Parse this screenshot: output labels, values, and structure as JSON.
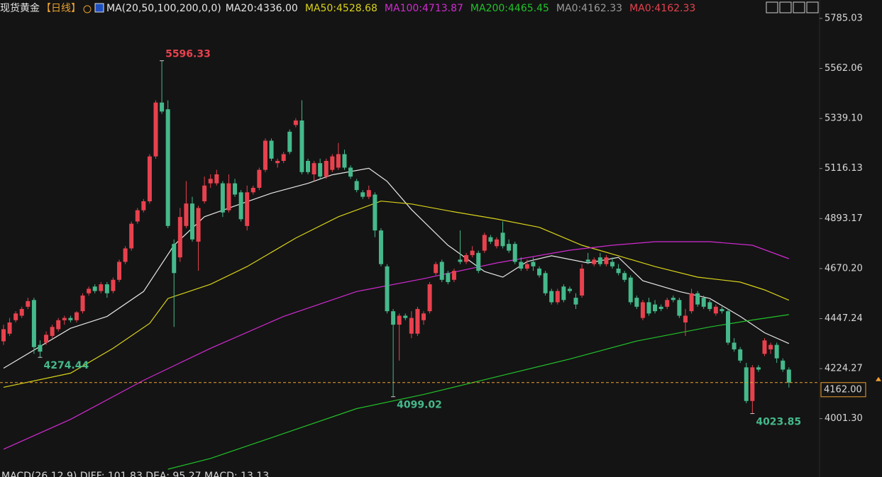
{
  "chart_data": {
    "type": "candlestick",
    "title": "现货黄金",
    "period": "【日线】",
    "indicator": "MA(20,50,100,200,0,0)",
    "footer": "MACD(26,12,9) DIFF: 101.83 DEA: 95.27 MACD: 13.13",
    "up_color": "#e8414e",
    "down_color": "#45b98b",
    "ylim": [
      3776,
      5867
    ],
    "yticks": [
      5785.03,
      5562.06,
      {
        "value": 5339.1,
        "label": "5339.10"
      },
      5116.13,
      4893.17,
      {
        "value": 4670.2,
        "label": "4670.20"
      },
      4447.24,
      4224.27,
      {
        "value": 4001.3,
        "label": "4001.30"
      }
    ],
    "current_price": {
      "value": 4162,
      "label": "4162.00",
      "color": "#f0a030"
    },
    "candles": [
      [
        4346,
        4420,
        4330,
        4400
      ],
      [
        4380,
        4450,
        4370,
        4430
      ],
      [
        4440,
        4480,
        4430,
        4470
      ],
      [
        4460,
        4500,
        4450,
        4490
      ],
      [
        4500,
        4540,
        4490,
        4525
      ],
      [
        4530,
        4540,
        4290,
        4320
      ],
      [
        4330,
        4350,
        4274.44,
        4300
      ],
      [
        4340,
        4390,
        4330,
        4375
      ],
      [
        4370,
        4420,
        4360,
        4410
      ],
      [
        4400,
        4450,
        4390,
        4440
      ],
      [
        4440,
        4460,
        4420,
        4450
      ],
      [
        4450,
        4460,
        4430,
        4440
      ],
      [
        4440,
        4480,
        4430,
        4475
      ],
      [
        4480,
        4560,
        4470,
        4550
      ],
      [
        4560,
        4590,
        4550,
        4580
      ],
      [
        4590,
        4600,
        4560,
        4570
      ],
      [
        4570,
        4610,
        4560,
        4600
      ],
      [
        4600,
        4610,
        4540,
        4560
      ],
      [
        4570,
        4630,
        4560,
        4620
      ],
      [
        4620,
        4710,
        4610,
        4700
      ],
      [
        4700,
        4770,
        4690,
        4760
      ],
      [
        4760,
        4880,
        4750,
        4870
      ],
      [
        4880,
        4940,
        4870,
        4930
      ],
      [
        4930,
        4980,
        4920,
        4970
      ],
      [
        4970,
        5180,
        4960,
        5170
      ],
      [
        5170,
        5420,
        5160,
        5410
      ],
      [
        5410,
        5596.33,
        5360,
        5370
      ],
      [
        5380,
        5420,
        4850,
        4860
      ],
      [
        4780,
        4800,
        4410,
        4650
      ],
      [
        4720,
        4940,
        4700,
        4900
      ],
      [
        4860,
        5060,
        4850,
        4960
      ],
      [
        4960,
        4990,
        4790,
        4800
      ],
      [
        4790,
        4950,
        4660,
        4940
      ],
      [
        4970,
        5080,
        4960,
        5040
      ],
      [
        5050,
        5090,
        5030,
        5070
      ],
      [
        5050,
        5110,
        5040,
        5090
      ],
      [
        5050,
        5060,
        4900,
        4920
      ],
      [
        4930,
        5090,
        4920,
        5050
      ],
      [
        5050,
        5070,
        4990,
        5000
      ],
      [
        5010,
        5020,
        4880,
        4890
      ],
      [
        4860,
        5040,
        4840,
        5010
      ],
      [
        5010,
        5040,
        5000,
        5030
      ],
      [
        5030,
        5120,
        5020,
        5110
      ],
      [
        5110,
        5250,
        5100,
        5240
      ],
      [
        5240,
        5250,
        5150,
        5160
      ],
      [
        5140,
        5160,
        5120,
        5150
      ],
      [
        5150,
        5190,
        5140,
        5180
      ],
      [
        5280,
        5290,
        5180,
        5190
      ],
      [
        5310,
        5340,
        5300,
        5330
      ],
      [
        5330,
        5420,
        5090,
        5100
      ],
      [
        5150,
        5160,
        5090,
        5100
      ],
      [
        5090,
        5150,
        5060,
        5140
      ],
      [
        5140,
        5160,
        5070,
        5080
      ],
      [
        5080,
        5160,
        5070,
        5150
      ],
      [
        5110,
        5180,
        5100,
        5170
      ],
      [
        5120,
        5230,
        5110,
        5180
      ],
      [
        5180,
        5200,
        5110,
        5120
      ],
      [
        5120,
        5130,
        5070,
        5080
      ],
      [
        5060,
        5070,
        5010,
        5020
      ],
      [
        5010,
        5020,
        4980,
        4990
      ],
      [
        4990,
        5040,
        4980,
        5020
      ],
      [
        5000,
        5010,
        4810,
        4840
      ],
      [
        4840,
        4850,
        4680,
        4690
      ],
      [
        4680,
        4690,
        4470,
        4480
      ],
      [
        4480,
        4490,
        4099.02,
        4420
      ],
      [
        4420,
        4470,
        4260,
        4460
      ],
      [
        4460,
        4470,
        4440,
        4450
      ],
      [
        4380,
        4480,
        4360,
        4450
      ],
      [
        4380,
        4500,
        4370,
        4490
      ],
      [
        4440,
        4480,
        4420,
        4470
      ],
      [
        4480,
        4610,
        4470,
        4600
      ],
      [
        4650,
        4700,
        4640,
        4690
      ],
      [
        4700,
        4710,
        4610,
        4620
      ],
      [
        4650,
        4660,
        4600,
        4610
      ],
      [
        4620,
        4670,
        4610,
        4660
      ],
      [
        4710,
        4840,
        4690,
        4700
      ],
      [
        4700,
        4740,
        4690,
        4730
      ],
      [
        4730,
        4770,
        4720,
        4750
      ],
      [
        4740,
        4750,
        4650,
        4660
      ],
      [
        4750,
        4830,
        4740,
        4820
      ],
      [
        4810,
        4820,
        4780,
        4790
      ],
      [
        4770,
        4810,
        4760,
        4800
      ],
      [
        4830,
        4880,
        4760,
        4770
      ],
      [
        4780,
        4800,
        4740,
        4750
      ],
      [
        4780,
        4790,
        4690,
        4700
      ],
      [
        4700,
        4720,
        4660,
        4670
      ],
      [
        4670,
        4710,
        4660,
        4690
      ],
      [
        4700,
        4720,
        4660,
        4680
      ],
      [
        4670,
        4680,
        4630,
        4640
      ],
      [
        4650,
        4660,
        4550,
        4560
      ],
      [
        4570,
        4580,
        4510,
        4520
      ],
      [
        4520,
        4580,
        4510,
        4570
      ],
      [
        4590,
        4600,
        4520,
        4530
      ],
      [
        4580,
        4590,
        4560,
        4570
      ],
      [
        4540,
        4560,
        4490,
        4510
      ],
      [
        4550,
        4690,
        4540,
        4670
      ],
      [
        4710,
        4740,
        4690,
        4700
      ],
      [
        4690,
        4720,
        4680,
        4710
      ],
      [
        4720,
        4740,
        4680,
        4690
      ],
      [
        4690,
        4730,
        4680,
        4720
      ],
      [
        4700,
        4720,
        4670,
        4680
      ],
      [
        4670,
        4690,
        4640,
        4650
      ],
      [
        4650,
        4660,
        4610,
        4620
      ],
      [
        4630,
        4640,
        4510,
        4520
      ],
      [
        4540,
        4550,
        4490,
        4500
      ],
      [
        4450,
        4530,
        4440,
        4520
      ],
      [
        4520,
        4540,
        4460,
        4470
      ],
      [
        4510,
        4530,
        4470,
        4480
      ],
      [
        4500,
        4510,
        4480,
        4490
      ],
      [
        4500,
        4540,
        4490,
        4530
      ],
      [
        4540,
        4550,
        4520,
        4530
      ],
      [
        4530,
        4540,
        4450,
        4460
      ],
      [
        4430,
        4490,
        4370,
        4460
      ],
      [
        4480,
        4580,
        4470,
        4560
      ],
      [
        4560,
        4570,
        4500,
        4510
      ],
      [
        4540,
        4550,
        4490,
        4500
      ],
      [
        4520,
        4530,
        4480,
        4490
      ],
      [
        4470,
        4510,
        4460,
        4500
      ],
      [
        4490,
        4500,
        4470,
        4480
      ],
      [
        4480,
        4490,
        4330,
        4340
      ],
      [
        4340,
        4360,
        4300,
        4310
      ],
      [
        4310,
        4320,
        4250,
        4260
      ],
      [
        4230,
        4250,
        4070,
        4080
      ],
      [
        4080,
        4240,
        4023.85,
        4230
      ],
      [
        4230,
        4240,
        4210,
        4220
      ],
      [
        4290,
        4360,
        4280,
        4350
      ],
      [
        4310,
        4340,
        4290,
        4330
      ],
      [
        4330,
        4340,
        4250,
        4270
      ],
      [
        4260,
        4270,
        4210,
        4220
      ],
      [
        4220,
        4230,
        4140,
        4162
      ]
    ],
    "annotations": [
      {
        "text": 5596.33,
        "candle": 26,
        "position": "above",
        "color": "#e8414e"
      },
      {
        "text": 4274.44,
        "candle": 6,
        "position": "below",
        "color": "#45b98b"
      },
      {
        "text": 4099.02,
        "candle": 64,
        "position": "below",
        "color": "#45b98b"
      },
      {
        "text": 4023.85,
        "candle": 123,
        "position": "below",
        "color": "#45b98b"
      }
    ],
    "series": [
      {
        "name": "MA20:4336.00",
        "color": "#e6e6e6",
        "x": [
          0,
          11,
          17,
          23,
          28,
          33,
          38,
          44,
          50,
          54,
          60,
          63,
          67,
          73,
          79,
          82,
          86,
          90,
          96,
          101,
          105,
          111,
          116,
          121,
          125,
          129
        ],
        "values": [
          4226,
          4404,
          4457,
          4568,
          4774,
          4901,
          4949,
          5006,
          5050,
          5088,
          5117,
          5059,
          4933,
          4774,
          4657,
          4632,
          4701,
          4727,
          4695,
          4720,
          4616,
          4568,
          4537,
          4457,
          4384,
          4336
        ]
      },
      {
        "name": "MA50:4528.68",
        "color": "#d8d21a",
        "x": [
          0,
          11,
          18,
          24,
          27,
          34,
          40,
          48,
          55,
          62,
          67,
          74,
          81,
          88,
          95,
          101,
          107,
          114,
          121,
          125,
          129
        ],
        "values": [
          4141,
          4204,
          4315,
          4426,
          4537,
          4600,
          4679,
          4806,
          4901,
          4971,
          4958,
          4923,
          4891,
          4854,
          4774,
          4727,
          4679,
          4632,
          4610,
          4575,
          4529
        ]
      },
      {
        "name": "MA100:4713.87",
        "color": "#d22ad2",
        "x": [
          0,
          11,
          23,
          34,
          46,
          58,
          69,
          81,
          93,
          100,
          107,
          116,
          123,
          129
        ],
        "values": [
          3865,
          3998,
          4172,
          4315,
          4457,
          4568,
          4625,
          4695,
          4752,
          4774,
          4790,
          4790,
          4774,
          4714
        ]
      },
      {
        "name": "MA200:4465.45",
        "color": "#22c22a",
        "x": [
          27,
          34,
          46,
          58,
          69,
          81,
          93,
          104,
          116,
          123,
          129
        ],
        "values": [
          3776,
          3824,
          3935,
          4046,
          4109,
          4188,
          4267,
          4347,
          4410,
          4441,
          4465
        ]
      }
    ],
    "extra_legend": [
      {
        "name": "MA0:4162.33",
        "color": "#9a9a9a"
      },
      {
        "name": "MA0:4162.33",
        "color": "#e8414e"
      }
    ]
  }
}
